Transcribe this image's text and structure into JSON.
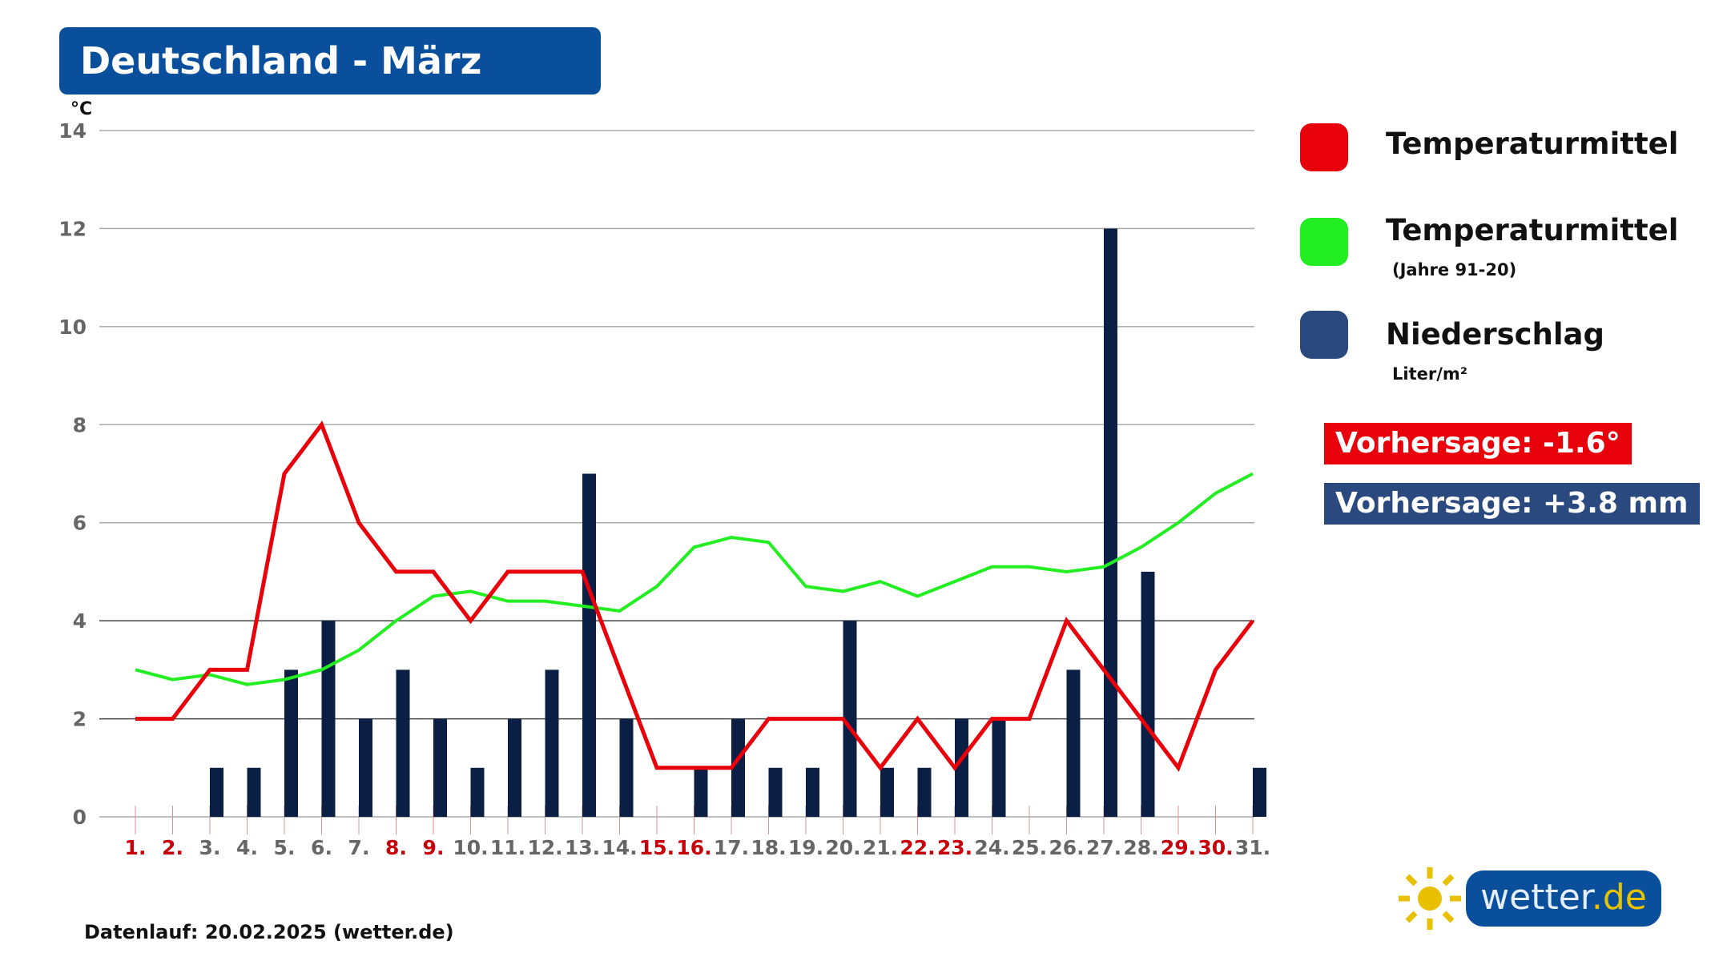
{
  "title": "Deutschland - März",
  "unit_label": "°C",
  "legend": [
    {
      "label": "Temperaturmittel",
      "sub": "",
      "color": "#e8000b"
    },
    {
      "label": "Temperaturmittel",
      "sub": "(Jahre 91-20)",
      "color": "#22ee22"
    },
    {
      "label": "Niederschlag",
      "sub": "Liter/m²",
      "color": "#2a4a7f"
    }
  ],
  "forecast": {
    "temp": "Vorhersage: -1.6°",
    "temp_color": "#e8000b",
    "precip": "Vorhersage: +3.8 mm",
    "precip_color": "#2a4a7f"
  },
  "footer": "Datenlauf: 20.02.2025 (wetter.de)",
  "logo": {
    "main": "wetter",
    "suffix": ".de"
  },
  "chart_data": {
    "type": "bar+line",
    "title": "Deutschland - März",
    "ylabel": "°C",
    "ylim": [
      0,
      14
    ],
    "yticks": [
      0,
      2,
      4,
      6,
      8,
      10,
      12,
      14
    ],
    "grid": true,
    "legend_position": "right",
    "categories": [
      "1.",
      "2.",
      "3.",
      "4.",
      "5.",
      "6.",
      "7.",
      "8.",
      "9.",
      "10.",
      "11.",
      "12.",
      "13.",
      "14.",
      "15.",
      "16.",
      "17.",
      "18.",
      "19.",
      "20.",
      "21.",
      "22.",
      "23.",
      "24.",
      "25.",
      "26.",
      "27.",
      "28.",
      "29.",
      "30.",
      "31."
    ],
    "weekend_days": [
      "1.",
      "2.",
      "8.",
      "9.",
      "15.",
      "16.",
      "22.",
      "23.",
      "29.",
      "30."
    ],
    "series": [
      {
        "name": "Niederschlag",
        "type": "bar",
        "color": "#0b1f45",
        "values": [
          0,
          0,
          1,
          1,
          3,
          4,
          2,
          3,
          2,
          1,
          2,
          3,
          7,
          2,
          0,
          1,
          2,
          1,
          1,
          4,
          1,
          1,
          2,
          2,
          0,
          3,
          12,
          5,
          0,
          0,
          1
        ]
      },
      {
        "name": "Temperaturmittel (Jahre 91-20)",
        "type": "line",
        "color": "#22ee22",
        "values": [
          3.0,
          2.8,
          2.9,
          2.7,
          2.8,
          3.0,
          3.4,
          4.0,
          4.5,
          4.6,
          4.4,
          4.4,
          4.3,
          4.2,
          4.7,
          5.5,
          5.7,
          5.6,
          4.7,
          4.6,
          4.8,
          4.5,
          4.8,
          5.1,
          5.1,
          5.0,
          5.1,
          5.5,
          6.0,
          6.6,
          7.0
        ]
      },
      {
        "name": "Temperaturmittel",
        "type": "line",
        "color": "#e8000b",
        "values": [
          2,
          2,
          3,
          3,
          7,
          8,
          6,
          5,
          5,
          4,
          5,
          5,
          5,
          3,
          1,
          1,
          1,
          2,
          2,
          2,
          1,
          2,
          1,
          2,
          2,
          4,
          3,
          2,
          1,
          3,
          4
        ]
      }
    ]
  }
}
